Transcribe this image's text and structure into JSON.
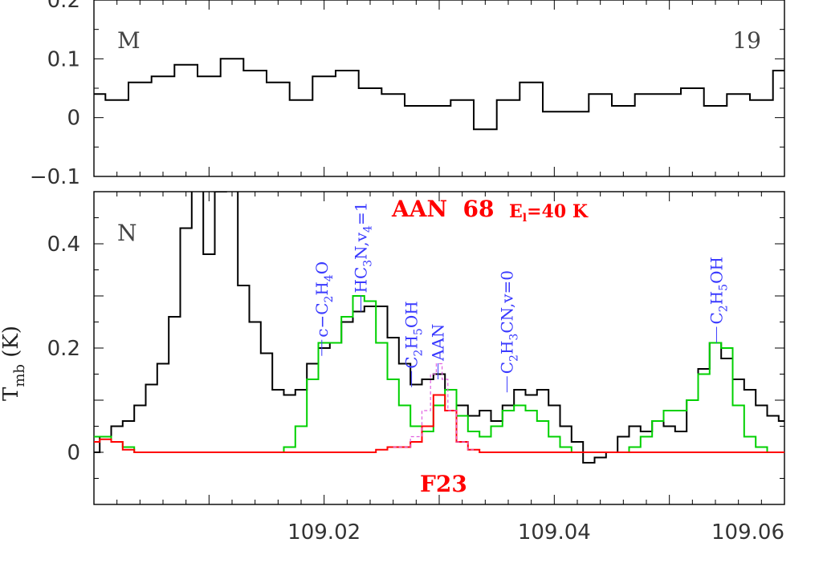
{
  "chart_data": [
    {
      "panel": "M",
      "type": "line",
      "step": true,
      "panel_label": "M",
      "panel_number": "19",
      "xlim": [
        109.0,
        109.06
      ],
      "ylim": [
        -0.1,
        0.2
      ],
      "yticks": [
        {
          "value": -0.1,
          "label": "−0.1"
        },
        {
          "value": 0,
          "label": "0"
        },
        {
          "value": 0.1,
          "label": "0.1"
        },
        {
          "value": 0.2,
          "label": "0.2"
        }
      ],
      "series": [
        {
          "color": "#000000",
          "x": [
            109.0,
            109.002,
            109.004,
            109.006,
            109.008,
            109.01,
            109.012,
            109.014,
            109.016,
            109.018,
            109.02,
            109.022,
            109.024,
            109.026,
            109.028,
            109.03,
            109.032,
            109.034,
            109.036,
            109.038,
            109.04,
            109.042,
            109.044,
            109.046,
            109.048,
            109.05,
            109.052,
            109.054,
            109.056,
            109.058,
            109.06
          ],
          "y": [
            0.04,
            0.03,
            0.06,
            0.07,
            0.09,
            0.07,
            0.1,
            0.08,
            0.06,
            0.03,
            0.07,
            0.08,
            0.05,
            0.04,
            0.02,
            0.02,
            0.03,
            -0.02,
            0.03,
            0.06,
            0.01,
            0.01,
            0.04,
            0.02,
            0.04,
            0.04,
            0.05,
            0.02,
            0.04,
            0.03,
            0.08
          ]
        }
      ]
    },
    {
      "panel": "N",
      "type": "line",
      "step": true,
      "panel_label": "N",
      "xlim": [
        109.0,
        109.06
      ],
      "ylim": [
        -0.1,
        0.5
      ],
      "xlabel": "",
      "ylabel": "T",
      "ylabel_sub": "mb",
      "ylabel_unit": " (K)",
      "xticks": [
        {
          "value": 109.02,
          "label": "109.02"
        },
        {
          "value": 109.04,
          "label": "109.04"
        },
        {
          "value": 109.06,
          "label": "109.06"
        }
      ],
      "yticks": [
        {
          "value": 0,
          "label": "0"
        },
        {
          "value": 0.2,
          "label": "0.2"
        },
        {
          "value": 0.4,
          "label": "0.4"
        }
      ],
      "title": "AAN  68",
      "energy_label": "E",
      "energy_sub": "l",
      "energy_value": "=40 K",
      "source_label": "F23",
      "series": [
        {
          "color": "#000000",
          "x": [
            109.0,
            109.001,
            109.002,
            109.003,
            109.004,
            109.005,
            109.006,
            109.007,
            109.008,
            109.009,
            109.01,
            109.011,
            109.012,
            109.013,
            109.014,
            109.015,
            109.016,
            109.017,
            109.018,
            109.019,
            109.02,
            109.021,
            109.022,
            109.023,
            109.024,
            109.025,
            109.026,
            109.027,
            109.028,
            109.029,
            109.03,
            109.031,
            109.032,
            109.033,
            109.034,
            109.035,
            109.036,
            109.037,
            109.038,
            109.039,
            109.04,
            109.041,
            109.042,
            109.043,
            109.044,
            109.045,
            109.046,
            109.047,
            109.048,
            109.049,
            109.05,
            109.051,
            109.052,
            109.053,
            109.054,
            109.055,
            109.056,
            109.057,
            109.058,
            109.059,
            109.06
          ],
          "y": [
            0.0,
            0.03,
            0.05,
            0.06,
            0.09,
            0.13,
            0.17,
            0.26,
            0.43,
            0.52,
            0.38,
            0.5,
            0.51,
            0.32,
            0.25,
            0.19,
            0.12,
            0.11,
            0.12,
            0.17,
            0.2,
            0.21,
            0.25,
            0.27,
            0.28,
            0.28,
            0.22,
            0.17,
            0.13,
            0.14,
            0.15,
            0.12,
            0.09,
            0.07,
            0.08,
            0.06,
            0.09,
            0.12,
            0.11,
            0.12,
            0.09,
            0.05,
            0.02,
            -0.02,
            -0.01,
            0.0,
            0.03,
            0.05,
            0.04,
            0.06,
            0.05,
            0.04,
            0.1,
            0.16,
            0.21,
            0.18,
            0.14,
            0.12,
            0.09,
            0.07,
            0.06
          ]
        },
        {
          "color": "#00d000",
          "x": [
            109.0,
            109.001,
            109.002,
            109.003,
            109.004,
            109.005,
            109.006,
            109.007,
            109.008,
            109.009,
            109.01,
            109.011,
            109.012,
            109.013,
            109.014,
            109.015,
            109.016,
            109.017,
            109.018,
            109.019,
            109.02,
            109.021,
            109.022,
            109.023,
            109.024,
            109.025,
            109.026,
            109.027,
            109.028,
            109.029,
            109.03,
            109.031,
            109.032,
            109.033,
            109.034,
            109.035,
            109.036,
            109.037,
            109.038,
            109.039,
            109.04,
            109.041,
            109.042,
            109.043,
            109.044,
            109.045,
            109.046,
            109.047,
            109.048,
            109.049,
            109.05,
            109.051,
            109.052,
            109.053,
            109.054,
            109.055,
            109.056,
            109.057,
            109.058,
            109.059,
            109.06
          ],
          "y": [
            0.03,
            0.03,
            0.02,
            0.01,
            0.0,
            0.0,
            0.0,
            0.0,
            0.0,
            0.0,
            0.0,
            0.0,
            0.0,
            0.0,
            0.0,
            0.0,
            0.0,
            0.01,
            0.05,
            0.14,
            0.21,
            0.21,
            0.26,
            0.3,
            0.29,
            0.21,
            0.14,
            0.09,
            0.05,
            0.04,
            0.09,
            0.12,
            0.07,
            0.04,
            0.03,
            0.05,
            0.08,
            0.09,
            0.08,
            0.06,
            0.03,
            0.01,
            0.0,
            0.0,
            0.0,
            0.0,
            0.0,
            0.01,
            0.03,
            0.06,
            0.08,
            0.08,
            0.1,
            0.15,
            0.21,
            0.2,
            0.09,
            0.03,
            0.01,
            0.0,
            0.0
          ]
        },
        {
          "color": "#ff0000",
          "x": [
            109.0,
            109.001,
            109.002,
            109.003,
            109.004,
            109.005,
            109.006,
            109.007,
            109.008,
            109.009,
            109.01,
            109.011,
            109.012,
            109.013,
            109.014,
            109.015,
            109.016,
            109.017,
            109.018,
            109.019,
            109.02,
            109.021,
            109.022,
            109.023,
            109.024,
            109.025,
            109.026,
            109.027,
            109.028,
            109.029,
            109.03,
            109.031,
            109.032,
            109.033,
            109.034,
            109.035,
            109.036,
            109.037,
            109.038,
            109.039,
            109.04,
            109.041,
            109.042,
            109.043,
            109.044,
            109.045,
            109.046,
            109.047,
            109.048,
            109.049,
            109.05,
            109.051,
            109.052,
            109.053,
            109.054,
            109.055,
            109.056,
            109.057,
            109.058,
            109.059,
            109.06
          ],
          "y": [
            0.02,
            0.025,
            0.02,
            0.005,
            0.0,
            0.0,
            0.0,
            0.0,
            0.0,
            0.0,
            0.0,
            0.0,
            0.0,
            0.0,
            0.0,
            0.0,
            0.0,
            0.0,
            0.0,
            0.0,
            0.0,
            0.0,
            0.0,
            0.0,
            0.0,
            0.005,
            0.01,
            0.01,
            0.02,
            0.05,
            0.11,
            0.08,
            0.02,
            0.005,
            0.0,
            0.0,
            0.0,
            0.0,
            0.0,
            0.0,
            0.0,
            0.0,
            0.0,
            0.0,
            0.0,
            0.0,
            0.0,
            0.0,
            0.0,
            0.0,
            0.0,
            0.0,
            0.0,
            0.0,
            0.0,
            0.0,
            0.0,
            0.0,
            0.0,
            0.0,
            0.0
          ]
        },
        {
          "color": "#e060e0",
          "dashed": true,
          "x": [
            109.026,
            109.027,
            109.028,
            109.029,
            109.0295,
            109.03,
            109.0305,
            109.031,
            109.032,
            109.033
          ],
          "y": [
            0.01,
            0.01,
            0.03,
            0.08,
            0.15,
            0.17,
            0.14,
            0.08,
            0.02,
            0.005
          ]
        }
      ],
      "annotations": [
        {
          "x": 109.0198,
          "y_tip": 0.185,
          "text": "c−C",
          "sub1": "2",
          "mid": "H",
          "sub2": "4",
          "tail": "O"
        },
        {
          "x": 109.0232,
          "y_tip": 0.27,
          "text": "HC",
          "sub1": "3",
          "mid": "N,v",
          "sub2": "4",
          "tail": "=1"
        },
        {
          "x": 109.0276,
          "y_tip": 0.125,
          "text": "C",
          "sub1": "2",
          "mid": "H",
          "sub2": "5",
          "tail": "OH"
        },
        {
          "x": 109.0299,
          "y_tip": 0.14,
          "text": "AAN",
          "sub1": "",
          "mid": "",
          "sub2": "",
          "tail": ""
        },
        {
          "x": 109.0359,
          "y_tip": 0.115,
          "text": "C",
          "sub1": "2",
          "mid": "H",
          "sub2": "3",
          "tail": "CN,v=0"
        },
        {
          "x": 109.0541,
          "y_tip": 0.21,
          "text": "C",
          "sub1": "2",
          "mid": "H",
          "sub2": "5",
          "tail": "OH"
        }
      ]
    }
  ]
}
